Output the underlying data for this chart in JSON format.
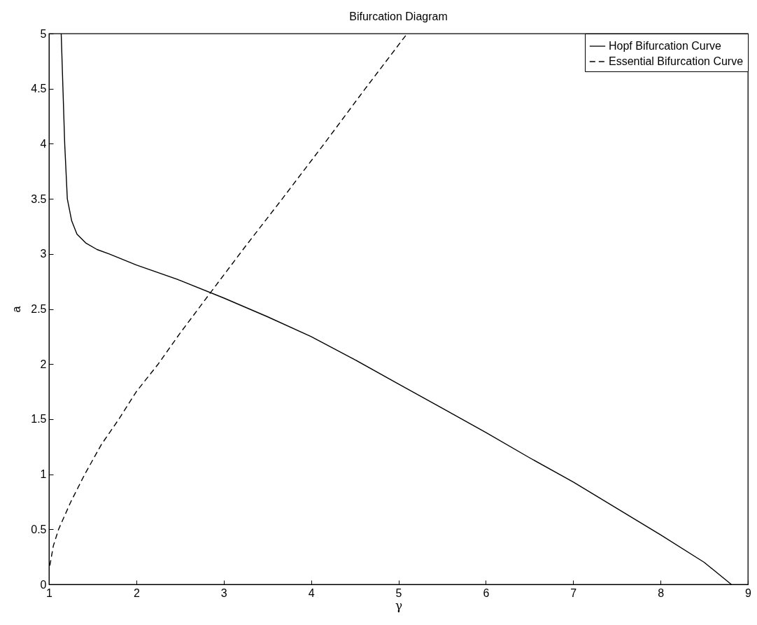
{
  "chart_data": {
    "type": "line",
    "title": "Bifurcation Diagram",
    "xlabel": "γ",
    "ylabel": "a",
    "xlim": [
      1,
      9
    ],
    "xticks": [
      1,
      2,
      3,
      4,
      5,
      6,
      7,
      8,
      9
    ],
    "ylim": [
      0,
      5
    ],
    "yticks": [
      0,
      0.5,
      1,
      1.5,
      2,
      2.5,
      3,
      3.5,
      4,
      4.5,
      5
    ],
    "legend": "top right",
    "grid": false,
    "series": [
      {
        "name": "Hopf Bifurcation Curve",
        "color": "#000000",
        "line_style": "solid",
        "x": [
          1.14,
          1.16,
          1.18,
          1.21,
          1.26,
          1.32,
          1.42,
          1.55,
          1.69,
          2,
          2.5,
          3,
          3.5,
          4,
          4.5,
          5,
          5.5,
          6,
          6.5,
          7,
          7.5,
          8,
          8.5,
          8.81
        ],
        "values": [
          5,
          4.5,
          4,
          3.5,
          3.3,
          3.18,
          3.1,
          3.04,
          3,
          2.9,
          2.76,
          2.6,
          2.43,
          2.25,
          2.04,
          1.82,
          1.6,
          1.38,
          1.15,
          0.93,
          0.69,
          0.45,
          0.2,
          0
        ]
      },
      {
        "name": "Essential Bifurcation Curve",
        "color": "#000000",
        "line_style": "dashed",
        "x": [
          1.01,
          1.05,
          1.11,
          1.25,
          1.41,
          1.6,
          1.8,
          2,
          2.25,
          2.5,
          2.85,
          3.25,
          3.67,
          4.15,
          4.62,
          5.1
        ],
        "values": [
          0.17,
          0.35,
          0.5,
          0.75,
          1,
          1.27,
          1.5,
          1.75,
          2,
          2.28,
          2.65,
          3.07,
          3.5,
          4,
          4.5,
          5
        ]
      }
    ]
  }
}
